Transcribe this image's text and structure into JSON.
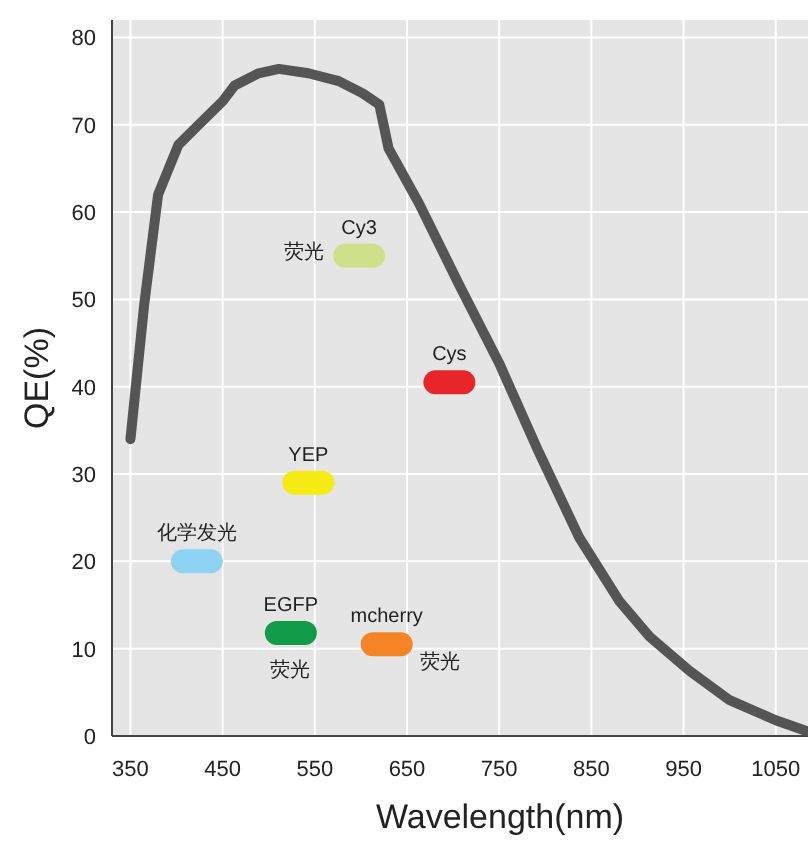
{
  "chart_data": {
    "type": "line",
    "xlabel": "Wavelength(nm)",
    "ylabel": "QE(%)",
    "xlim": [
      330,
      1085
    ],
    "ylim": [
      0,
      82
    ],
    "xticks": [
      350,
      450,
      550,
      650,
      750,
      850,
      950,
      1050
    ],
    "yticks": [
      0,
      10,
      20,
      30,
      40,
      50,
      60,
      70,
      80
    ],
    "grid": true,
    "series": [
      {
        "color": "#555555",
        "x": [
          350,
          365,
          380,
          402,
          424,
          450,
          463,
          489,
          511,
          543,
          576,
          602,
          620,
          630,
          663,
          706,
          750,
          793,
          837,
          880,
          913,
          956,
          1000,
          1050,
          1085
        ],
        "values": [
          34,
          49.5,
          62,
          67.7,
          70,
          72.7,
          74.5,
          75.9,
          76.4,
          75.9,
          75,
          73.6,
          72.3,
          67.3,
          61,
          51.8,
          42.7,
          32.5,
          22.7,
          15.5,
          11.4,
          7.5,
          4.1,
          1.8,
          0.5
        ]
      },
      {
        "type": "scatter",
        "name": "Cy3",
        "color": "#cfe08a",
        "x": [
          598
        ],
        "values": [
          55
        ]
      },
      {
        "type": "scatter",
        "name": "Cys",
        "color": "#e8262a",
        "x": [
          696
        ],
        "values": [
          40.5
        ]
      },
      {
        "type": "scatter",
        "name": "YEP",
        "color": "#f6eb14",
        "x": [
          543
        ],
        "values": [
          29
        ]
      },
      {
        "type": "scatter",
        "name": "化学发光",
        "color": "#8fd3f4",
        "x": [
          422
        ],
        "values": [
          20
        ]
      },
      {
        "type": "scatter",
        "name": "EGFP",
        "color": "#119b48",
        "x": [
          524
        ],
        "values": [
          11.8
        ]
      },
      {
        "type": "scatter",
        "name": "mcherry",
        "color": "#f58426",
        "x": [
          628
        ],
        "values": [
          10.5
        ]
      }
    ],
    "annotations": [
      "荧光",
      "荧光",
      "荧光"
    ]
  }
}
